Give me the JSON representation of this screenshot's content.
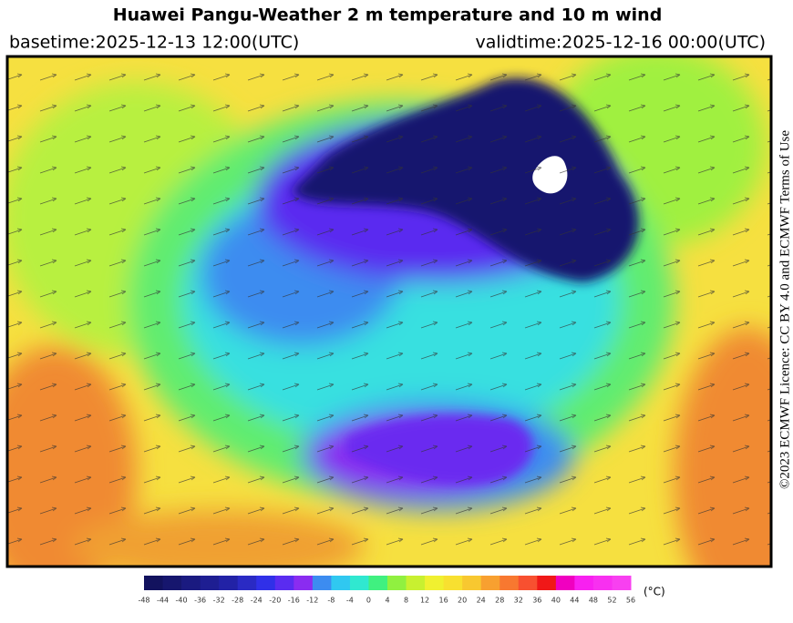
{
  "header": {
    "title": "Huawei Pangu-Weather  2 m temperature and 10 m wind",
    "basetime": "basetime:2025-12-13 12:00(UTC)",
    "validtime": "validtime:2025-12-16 00:00(UTC)"
  },
  "licence": "©2023 ECMWF Licence: CC BY 4.0 and ECMWF  Terms of Use",
  "legend": {
    "ticks": [
      -48,
      -44,
      -40,
      -36,
      -32,
      -28,
      -24,
      -20,
      -16,
      -12,
      -8,
      -4,
      0,
      4,
      8,
      12,
      16,
      20,
      24,
      28,
      32,
      36,
      40,
      44,
      48,
      52,
      56
    ],
    "colors": [
      "#12125e",
      "#16166e",
      "#1a1a80",
      "#1e1e92",
      "#2222a6",
      "#2a2ac4",
      "#3030e8",
      "#5a2cf0",
      "#8a2cf0",
      "#3c8cf0",
      "#30c8f0",
      "#30e8d0",
      "#40f080",
      "#90f040",
      "#c8f030",
      "#f0f030",
      "#f8e030",
      "#f8c830",
      "#f8a030",
      "#f87830",
      "#f85030",
      "#f01818",
      "#f000c0",
      "#f820f0",
      "#f830f0",
      "#f840f0"
    ],
    "unit": "(°C)"
  }
}
